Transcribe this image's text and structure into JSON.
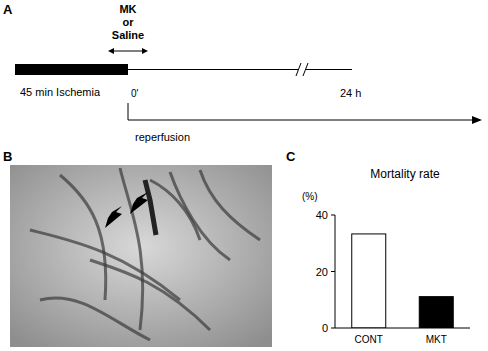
{
  "panel_labels": [
    "A",
    "B",
    "C"
  ],
  "timeline": {
    "treatment_lines": [
      "MK",
      "or",
      "Saline"
    ],
    "ischemia": "45 min Ischemia",
    "start": "0'",
    "end": "24 h",
    "reperfusion": "reperfusion"
  },
  "chart_data": {
    "type": "bar",
    "title": "Mortality rate",
    "ylabel": "(%)",
    "categories": [
      "CONT",
      "MKT"
    ],
    "values": [
      33.3,
      11.1
    ],
    "colors": [
      "#ffffff",
      "#000000"
    ],
    "ylim": [
      0,
      40
    ],
    "yticks": [
      0,
      20,
      40
    ],
    "grid": false
  }
}
